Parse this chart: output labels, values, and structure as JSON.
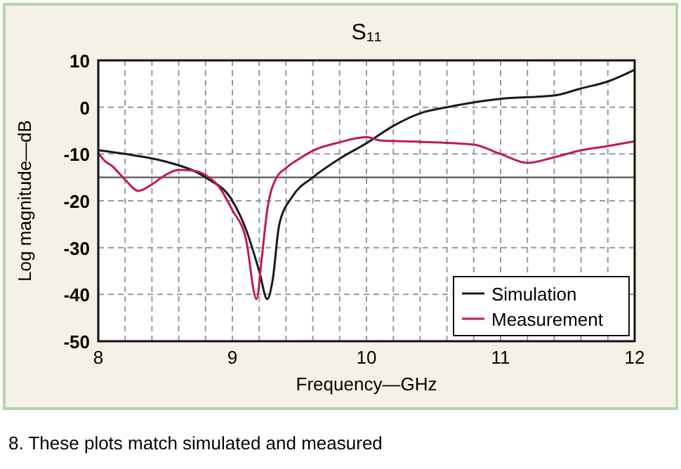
{
  "chart_data": {
    "type": "line",
    "title": "S₁₁",
    "xlabel": "Frequency—GHz",
    "ylabel": "Log magnitude—dB",
    "annotations": [
      "8. These plots match simulated and measured"
    ],
    "xlim": [
      8,
      12
    ],
    "xticks": [
      8,
      9,
      10,
      11,
      {
        "value": 12,
        "label": "12"
      }
    ],
    "ylim": [
      -50,
      10
    ],
    "yticks": [
      -50,
      -40,
      -30,
      -20,
      -10,
      0,
      10
    ],
    "grid": true,
    "legend": "bottom right",
    "line_style": "solid",
    "marker": "none",
    "ref_lines": [
      {
        "axis": "y",
        "value": -15,
        "color": "#555555"
      }
    ],
    "series": [
      {
        "name": "Simulation",
        "color": "#1a1a1a",
        "x": [
          8,
          8.2,
          8.5,
          8.8,
          9,
          9.1,
          9.2,
          9.26,
          9.3,
          9.35,
          9.45,
          9.6,
          9.8,
          10,
          10.2,
          10.4,
          10.6,
          11,
          11.4,
          11.6,
          11.8,
          12
        ],
        "values": [
          -9.2,
          -10,
          -11.6,
          -15,
          -20,
          -26,
          -35,
          -41,
          -37,
          -25,
          -19,
          -15,
          -11,
          -7.7,
          -4,
          -1.3,
          0,
          1.8,
          2.5,
          4,
          5.5,
          8
        ]
      },
      {
        "name": "Measurement",
        "color": "#c2185b",
        "x": [
          8,
          8.05,
          8.1,
          8.2,
          8.3,
          8.4,
          8.5,
          8.6,
          8.7,
          8.8,
          8.9,
          9,
          9.1,
          9.18,
          9.22,
          9.26,
          9.33,
          9.4,
          9.5,
          9.6,
          9.8,
          10,
          10.1,
          10.4,
          10.8,
          11,
          11.2,
          11.4,
          11.6,
          11.8,
          12
        ],
        "values": [
          -9.8,
          -11.5,
          -12.5,
          -15.5,
          -17.9,
          -16.5,
          -14.5,
          -13.4,
          -13.5,
          -14.5,
          -17,
          -22,
          -28,
          -41,
          -32,
          -22,
          -15,
          -13,
          -11,
          -9.3,
          -7.5,
          -6.4,
          -7.1,
          -7.4,
          -8,
          -10,
          -11.9,
          -10.7,
          -9.2,
          -8.3,
          -7.3
        ]
      }
    ]
  }
}
